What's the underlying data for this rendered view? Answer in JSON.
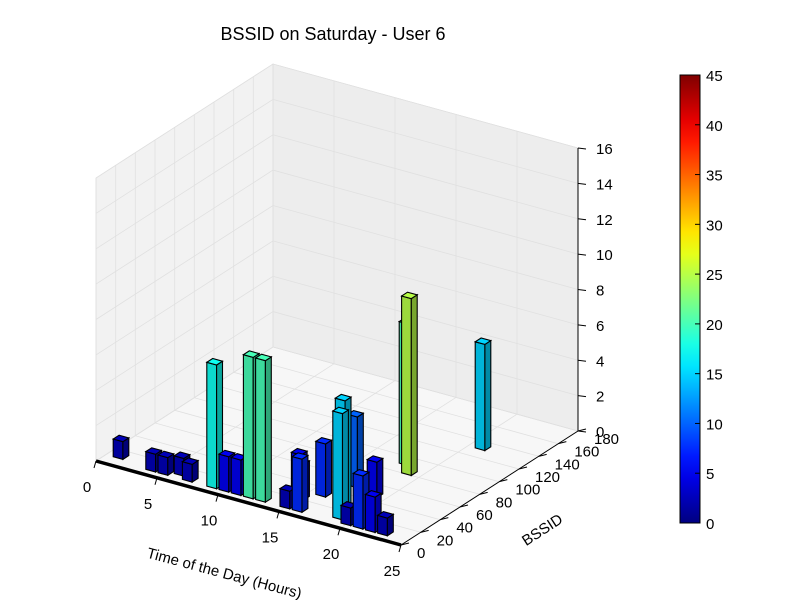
{
  "chart_data": {
    "type": "bar3d",
    "title": "BSSID on Saturday - User 6",
    "xlabel": "Time of the Day (Hours)",
    "ylabel": "BSSID",
    "zlabel": "",
    "xlim": [
      0,
      25
    ],
    "ylim": [
      0,
      180
    ],
    "zlim": [
      0,
      16
    ],
    "xticks": [
      0,
      5,
      10,
      15,
      20,
      25
    ],
    "yticks": [
      0,
      20,
      40,
      60,
      80,
      100,
      120,
      140,
      160,
      180
    ],
    "zticks": [
      0,
      2,
      4,
      6,
      8,
      10,
      12,
      14,
      16
    ],
    "colorbar": {
      "colormap": "jet",
      "min": 0,
      "max": 45,
      "ticks": [
        0,
        5,
        10,
        15,
        20,
        25,
        30,
        35,
        40,
        45
      ]
    },
    "grid": true,
    "bars": [
      {
        "x": 1,
        "y": 10,
        "z": 1
      },
      {
        "x": 4,
        "y": 6,
        "z": 1
      },
      {
        "x": 5,
        "y": 6,
        "z": 1
      },
      {
        "x": 6,
        "y": 10,
        "z": 1
      },
      {
        "x": 7,
        "y": 6,
        "z": 1
      },
      {
        "x": 9,
        "y": 6,
        "z": 7
      },
      {
        "x": 10,
        "y": 6,
        "z": 2
      },
      {
        "x": 11,
        "y": 6,
        "z": 2
      },
      {
        "x": 12,
        "y": 6,
        "z": 8
      },
      {
        "x": 13,
        "y": 6,
        "z": 8
      },
      {
        "x": 14,
        "y": 30,
        "z": 2
      },
      {
        "x": 15,
        "y": 20,
        "z": 2
      },
      {
        "x": 15,
        "y": 6,
        "z": 1
      },
      {
        "x": 16,
        "y": 30,
        "z": 3
      },
      {
        "x": 16,
        "y": 6,
        "z": 3
      },
      {
        "x": 17,
        "y": 50,
        "z": 4
      },
      {
        "x": 18,
        "y": 90,
        "z": 8
      },
      {
        "x": 18,
        "y": 25,
        "z": 6
      },
      {
        "x": 19,
        "y": 80,
        "z": 10
      },
      {
        "x": 19,
        "y": 45,
        "z": 2
      },
      {
        "x": 19,
        "y": 10,
        "z": 6
      },
      {
        "x": 20,
        "y": 6,
        "z": 1
      },
      {
        "x": 21,
        "y": 6,
        "z": 3
      },
      {
        "x": 21,
        "y": 130,
        "z": 6
      },
      {
        "x": 22,
        "y": 6,
        "z": 2
      },
      {
        "x": 23,
        "y": 6,
        "z": 1
      }
    ]
  }
}
